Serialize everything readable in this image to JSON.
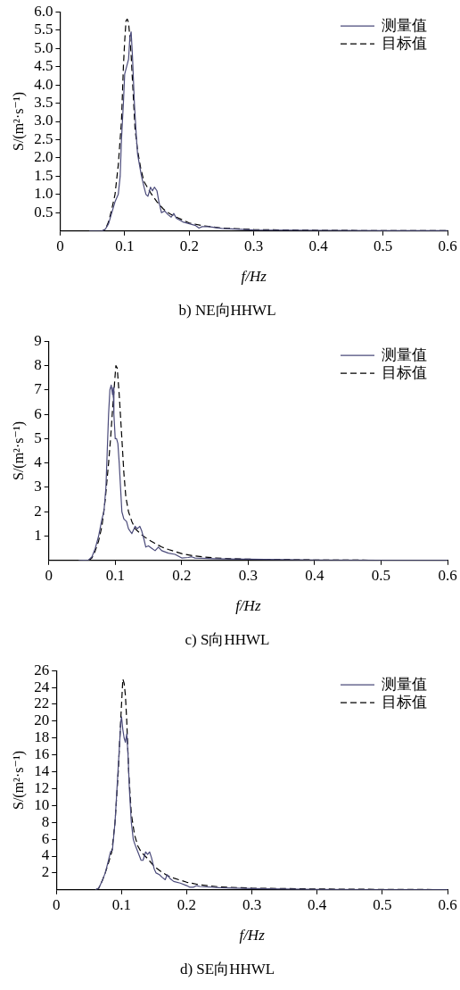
{
  "chart_data": [
    {
      "type": "line",
      "title": "b) NE向HHWL",
      "xlabel": "f/Hz",
      "ylabel": "S/(m²·s⁻¹)",
      "xlim": [
        0,
        0.6
      ],
      "xticks": [
        0,
        0.1,
        0.2,
        0.3,
        0.4,
        0.5,
        0.6
      ],
      "ylim": [
        0,
        6
      ],
      "yticks": [
        0.5,
        {
          "value": 1,
          "label": "1.0"
        },
        1.5,
        {
          "value": 2,
          "label": "2.0"
        },
        2.5,
        {
          "value": 3,
          "label": "3.0"
        },
        3.5,
        {
          "value": 4,
          "label": "4.0"
        },
        4.5,
        {
          "value": 5,
          "label": "5.0"
        },
        5.5,
        {
          "value": 6,
          "label": "6.0"
        }
      ],
      "grid": false,
      "legend": "top right",
      "marker": "none",
      "series": [
        {
          "name": "测量值",
          "color": "#4a4a7a",
          "line_style": "solid",
          "x": [
            0.045,
            0.065,
            0.07,
            0.075,
            0.08,
            0.085,
            0.09,
            0.093,
            0.095,
            0.098,
            0.1,
            0.103,
            0.106,
            0.108,
            0.11,
            0.112,
            0.115,
            0.118,
            0.12,
            0.123,
            0.126,
            0.13,
            0.133,
            0.136,
            0.14,
            0.143,
            0.146,
            0.15,
            0.153,
            0.157,
            0.162,
            0.167,
            0.172,
            0.176,
            0.18,
            0.19,
            0.2,
            0.21,
            0.215,
            0.22,
            0.23,
            0.25,
            0.3,
            0.4,
            0.5,
            0.6
          ],
          "values": [
            0,
            0,
            0.05,
            0.2,
            0.5,
            0.8,
            1.0,
            1.5,
            2.5,
            3.5,
            4.3,
            4.5,
            4.7,
            5.3,
            5.45,
            4.8,
            3.5,
            2.6,
            2.1,
            1.8,
            1.5,
            1.2,
            1.0,
            0.95,
            1.2,
            1.1,
            1.2,
            1.1,
            0.8,
            0.5,
            0.55,
            0.45,
            0.38,
            0.48,
            0.35,
            0.25,
            0.2,
            0.15,
            0.08,
            0.12,
            0.12,
            0.07,
            0.03,
            0.02,
            0.01,
            0.01
          ]
        },
        {
          "name": "目标值",
          "color": "#000000",
          "line_style": "dashed",
          "x": [
            0.045,
            0.065,
            0.07,
            0.075,
            0.08,
            0.085,
            0.09,
            0.095,
            0.098,
            0.1,
            0.102,
            0.104,
            0.106,
            0.108,
            0.11,
            0.113,
            0.116,
            0.12,
            0.125,
            0.13,
            0.14,
            0.15,
            0.16,
            0.17,
            0.18,
            0.2,
            0.22,
            0.25,
            0.3,
            0.4,
            0.5,
            0.6
          ],
          "values": [
            0,
            0,
            0.05,
            0.25,
            0.6,
            1.0,
            1.8,
            3.0,
            4.5,
            5.2,
            5.75,
            5.8,
            5.7,
            5.3,
            4.8,
            3.8,
            2.8,
            2.2,
            1.7,
            1.35,
            1.05,
            0.8,
            0.6,
            0.47,
            0.38,
            0.22,
            0.15,
            0.08,
            0.04,
            0.02,
            0.01,
            0.01
          ]
        }
      ]
    },
    {
      "type": "line",
      "title": "c) S向HHWL",
      "xlabel": "f/Hz",
      "ylabel": "S/(m²·s⁻¹)",
      "xlim": [
        0,
        0.6
      ],
      "xticks": [
        0,
        0.1,
        0.2,
        0.3,
        0.4,
        0.5,
        0.6
      ],
      "ylim": [
        0,
        9
      ],
      "yticks": [
        1,
        2,
        3,
        4,
        5,
        6,
        7,
        8,
        9
      ],
      "grid": false,
      "legend": "top right",
      "marker": "none",
      "series": [
        {
          "name": "测量值",
          "color": "#4a4a7a",
          "line_style": "solid",
          "x": [
            0.045,
            0.06,
            0.065,
            0.07,
            0.075,
            0.08,
            0.083,
            0.086,
            0.088,
            0.09,
            0.092,
            0.094,
            0.096,
            0.097,
            0.098,
            0.1,
            0.102,
            0.104,
            0.106,
            0.108,
            0.11,
            0.113,
            0.117,
            0.12,
            0.125,
            0.13,
            0.133,
            0.137,
            0.14,
            0.143,
            0.146,
            0.15,
            0.155,
            0.16,
            0.165,
            0.17,
            0.18,
            0.19,
            0.2,
            0.21,
            0.215,
            0.22,
            0.25,
            0.3,
            0.4,
            0.5,
            0.6
          ],
          "values": [
            0,
            0.02,
            0.15,
            0.5,
            1.0,
            1.7,
            2.0,
            3.0,
            4.5,
            6.0,
            7.0,
            7.2,
            6.8,
            7.1,
            6.0,
            5.0,
            5.0,
            4.8,
            4.0,
            3.0,
            2.0,
            1.7,
            1.6,
            1.3,
            1.1,
            1.4,
            1.3,
            1.4,
            1.2,
            0.9,
            0.55,
            0.6,
            0.5,
            0.4,
            0.55,
            0.4,
            0.3,
            0.25,
            0.1,
            0.12,
            0.15,
            0.1,
            0.07,
            0.05,
            0.02,
            0.01,
            0.01
          ]
        },
        {
          "name": "目标值",
          "color": "#000000",
          "line_style": "dashed",
          "x": [
            0.045,
            0.06,
            0.065,
            0.07,
            0.075,
            0.08,
            0.085,
            0.09,
            0.093,
            0.096,
            0.099,
            0.101,
            0.103,
            0.106,
            0.11,
            0.113,
            0.116,
            0.12,
            0.125,
            0.13,
            0.14,
            0.15,
            0.16,
            0.17,
            0.18,
            0.2,
            0.22,
            0.25,
            0.3,
            0.4,
            0.5,
            0.6
          ],
          "values": [
            0,
            0,
            0.1,
            0.4,
            0.8,
            1.4,
            2.5,
            4.0,
            5.0,
            6.2,
            7.3,
            8.0,
            7.9,
            6.8,
            5.0,
            3.6,
            2.6,
            2.0,
            1.6,
            1.3,
            1.05,
            0.85,
            0.7,
            0.55,
            0.45,
            0.28,
            0.18,
            0.1,
            0.05,
            0.02,
            0.01,
            0.01
          ]
        }
      ]
    },
    {
      "type": "line",
      "title": "d) SE向HHWL",
      "xlabel": "f/Hz",
      "ylabel": "S/(m²·s⁻¹)",
      "xlim": [
        0,
        0.6
      ],
      "xticks": [
        0,
        0.1,
        0.2,
        0.3,
        0.4,
        0.5,
        0.6
      ],
      "ylim": [
        0,
        26
      ],
      "yticks": [
        2,
        4,
        6,
        8,
        10,
        12,
        14,
        16,
        18,
        20,
        22,
        24,
        26
      ],
      "grid": false,
      "legend": "top right",
      "marker": "none",
      "series": [
        {
          "name": "测量值",
          "color": "#4a4a7a",
          "line_style": "solid",
          "x": [
            0.06,
            0.065,
            0.07,
            0.075,
            0.08,
            0.083,
            0.086,
            0.09,
            0.093,
            0.096,
            0.099,
            0.1,
            0.102,
            0.104,
            0.106,
            0.108,
            0.11,
            0.112,
            0.115,
            0.118,
            0.12,
            0.125,
            0.13,
            0.133,
            0.137,
            0.14,
            0.143,
            0.146,
            0.15,
            0.153,
            0.158,
            0.162,
            0.167,
            0.17,
            0.175,
            0.18,
            0.19,
            0.2,
            0.205,
            0.21,
            0.215,
            0.22,
            0.25,
            0.3,
            0.4,
            0.5,
            0.6
          ],
          "values": [
            0,
            0.2,
            1,
            2,
            3.5,
            4.5,
            4.7,
            8,
            12,
            16,
            20,
            20.5,
            19,
            18,
            17.5,
            18.5,
            16,
            12,
            8,
            6,
            5.5,
            4.5,
            3.5,
            3.5,
            4.5,
            4.2,
            4.5,
            3.8,
            2.5,
            2.0,
            1.8,
            1.5,
            1.2,
            1.8,
            1.3,
            1.0,
            0.8,
            0.5,
            0.3,
            0.3,
            0.5,
            0.4,
            0.25,
            0.15,
            0.05,
            0.03,
            0.02
          ]
        },
        {
          "name": "目标值",
          "color": "#000000",
          "line_style": "dashed",
          "x": [
            0.06,
            0.065,
            0.07,
            0.075,
            0.08,
            0.085,
            0.09,
            0.095,
            0.098,
            0.1,
            0.102,
            0.104,
            0.106,
            0.108,
            0.111,
            0.115,
            0.12,
            0.125,
            0.13,
            0.14,
            0.15,
            0.16,
            0.17,
            0.18,
            0.2,
            0.22,
            0.25,
            0.3,
            0.4,
            0.5,
            0.6
          ],
          "values": [
            0,
            0.2,
            1,
            2,
            3.2,
            4.5,
            8,
            14,
            19,
            22,
            25,
            24.5,
            23,
            20,
            14,
            9,
            6.5,
            5.2,
            4.5,
            3.7,
            2.8,
            2.2,
            1.7,
            1.4,
            0.9,
            0.6,
            0.35,
            0.2,
            0.1,
            0.05,
            0.03
          ]
        }
      ]
    }
  ]
}
